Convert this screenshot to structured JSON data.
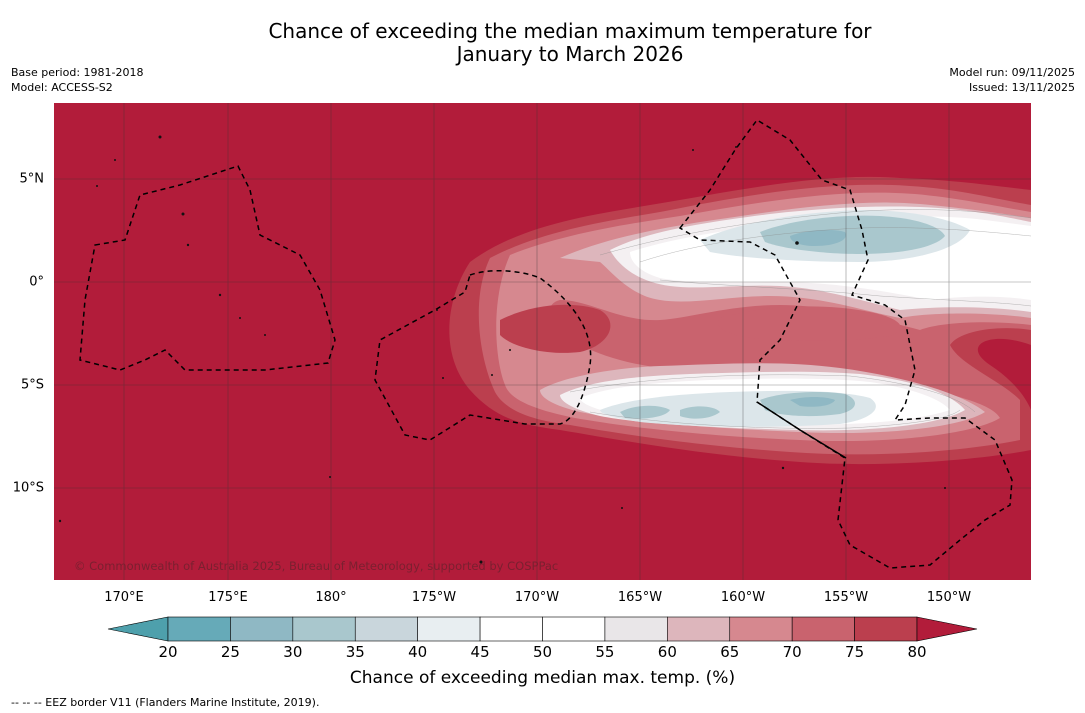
{
  "title_line1": "Chance of exceeding the median maximum temperature for",
  "title_line2": "January to March 2026",
  "meta_left": [
    "Base period: 1981-2018",
    "Model: ACCESS-S2"
  ],
  "meta_right": [
    "Model run: 09/11/2025",
    "Issued: 13/11/2025"
  ],
  "copyright": "© Commonwealth of Australia 2025, Bureau of Meteorology, supported by COSPPac",
  "footnote": "--  --  -- EEZ border V11 (Flanders Marine Institute, 2019).",
  "colorbar": {
    "title": "Chance of exceeding median max. temp. (%)",
    "ticks": [
      "20",
      "25",
      "30",
      "35",
      "40",
      "45",
      "50",
      "55",
      "60",
      "65",
      "70",
      "75",
      "80"
    ],
    "colors": [
      "#66aab8",
      "#8fb8c4",
      "#a9c7cd",
      "#c9d6dc",
      "#e8eef1",
      "#ffffff",
      "#ffffff",
      "#e9e6e8",
      "#ddb6bc",
      "#d6888f",
      "#c9636e",
      "#bb3f4e"
    ],
    "under_color": "#4ea0ac",
    "over_color": "#b21c3a"
  },
  "map": {
    "lon_labels": [
      "170°E",
      "175°E",
      "180°",
      "175°W",
      "170°W",
      "165°W",
      "160°W",
      "155°W",
      "150°W"
    ],
    "lat_labels": [
      "5°N",
      "0°",
      "5°S",
      "10°S"
    ],
    "background_color": "#b21c3a"
  }
}
